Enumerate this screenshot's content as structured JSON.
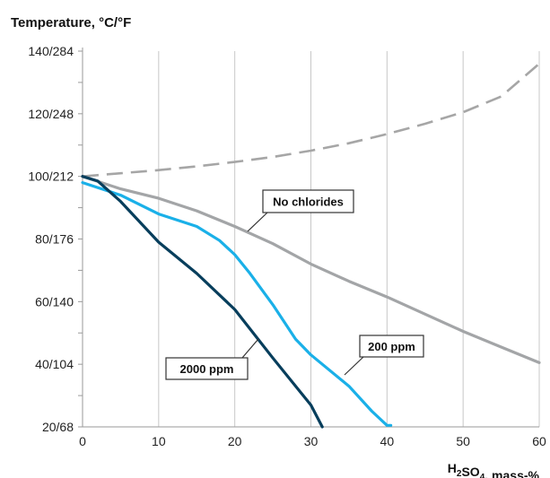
{
  "chart_data": {
    "type": "line",
    "ylabel": "Temperature, °C/°F",
    "xlabel": "H₂SO₄, mass-%",
    "xlim": [
      0,
      60
    ],
    "ylim": [
      20,
      140
    ],
    "x_ticks": [
      0,
      10,
      20,
      30,
      40,
      50,
      60
    ],
    "y_ticks": [
      {
        "value": 20,
        "label": "20/68"
      },
      {
        "value": 40,
        "label": "40/104"
      },
      {
        "value": 60,
        "label": "60/140"
      },
      {
        "value": 80,
        "label": "80/176"
      },
      {
        "value": 100,
        "label": "100/212"
      },
      {
        "value": 120,
        "label": "120/248"
      },
      {
        "value": 140,
        "label": "140/284"
      }
    ],
    "grid": "vertical",
    "series": [
      {
        "style": "dashed",
        "color": "#a6a6a6",
        "x": [
          0,
          5,
          10,
          15,
          20,
          25,
          30,
          35,
          40,
          45,
          50,
          55,
          60
        ],
        "y": [
          100,
          101,
          102,
          103.2,
          104.6,
          106.2,
          108.2,
          110.6,
          113.5,
          116.8,
          120.5,
          125.5,
          136
        ]
      },
      {
        "name": "No chlorides",
        "color": "#a3a5a7",
        "x": [
          0,
          5,
          10,
          15,
          20,
          25,
          30,
          35,
          40,
          45,
          50,
          55,
          60
        ],
        "y": [
          100,
          96,
          93,
          89,
          84,
          78.5,
          72,
          66.5,
          61.5,
          56,
          50.5,
          45.5,
          40.5
        ]
      },
      {
        "name": "200 ppm",
        "color": "#1ab0e8",
        "x": [
          0,
          5,
          10,
          15,
          18,
          20,
          22,
          25,
          28,
          30,
          35,
          38,
          40,
          40.5
        ],
        "y": [
          98,
          94,
          88,
          84,
          79.5,
          75,
          69,
          59,
          48,
          43,
          33,
          25,
          20.5,
          20.5
        ]
      },
      {
        "name": "2000 ppm",
        "color": "#073e5c",
        "x": [
          0,
          2,
          5,
          10,
          15,
          20,
          25,
          28,
          30,
          31.5
        ],
        "y": [
          100,
          98.5,
          92,
          79,
          69,
          57.5,
          42,
          33,
          27,
          20
        ]
      }
    ],
    "annotations": [
      {
        "text": "No chlorides"
      },
      {
        "text": "200 ppm"
      },
      {
        "text": "2000 ppm"
      }
    ]
  }
}
